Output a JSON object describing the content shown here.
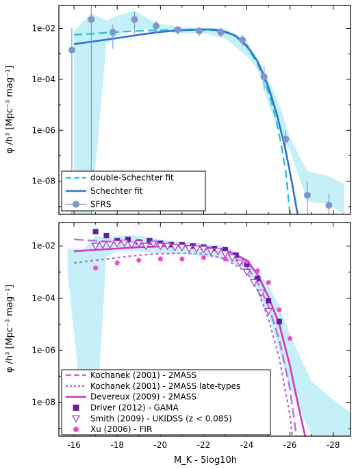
{
  "chart_data": {
    "type": "line",
    "xlabel": "M_K - 5log10h",
    "ylabel": "φ /h³ [Mpc⁻³ mag⁻¹]",
    "xlim": [
      -15.3,
      -28.8
    ],
    "ylim_log10": [
      -9.3,
      -1.1
    ],
    "xticks": [
      -16,
      -18,
      -20,
      -22,
      -24,
      -26,
      -28
    ],
    "yticks_log10": [
      -2,
      -4,
      -6,
      -8
    ],
    "ytick_labels": [
      "1e-02",
      "1e-04",
      "1e-06",
      "1e-08"
    ],
    "colors": {
      "band": "#c5f0f7",
      "sfrs_points": "#7f96cd",
      "double_schechter": "#33c0d4",
      "schechter": "#2374d6",
      "kochanek": "#b96fdb",
      "devereux": "#d533c7",
      "driver": "#6a1aa8",
      "smith": "#b239c8",
      "xu": "#f048c8"
    },
    "panels": [
      {
        "name": "top",
        "legend_position": "bottom-left",
        "band": {
          "x": [
            -16,
            -16.8,
            -17.5,
            -18,
            -18.8,
            -19.8,
            -21,
            -22,
            -23,
            -24,
            -24.5,
            -25,
            -25.6,
            -26,
            -26.8,
            -27.8,
            -28.5
          ],
          "upper": [
            -2.1,
            -1.4,
            -1.7,
            -1.5,
            -1.3,
            -1.8,
            -1.95,
            -1.97,
            -2.0,
            -2.5,
            -3.2,
            -4.0,
            -5.2,
            -6.3,
            -7.6,
            -7.8,
            -8.1
          ],
          "lower": [
            -9.3,
            -9.3,
            -2.6,
            -2.3,
            -2.0,
            -2.1,
            -2.2,
            -2.2,
            -2.4,
            -3.1,
            -3.6,
            -5.0,
            -6.2,
            -6.8,
            -8.8,
            -8.9,
            -9.3
          ]
        },
        "series": [
          {
            "name": "double-Schechter fit",
            "style": "dashed",
            "x": [
              -16,
              -17,
              -18,
              -19,
              -20,
              -21,
              -22,
              -22.5,
              -23,
              -23.5,
              -24,
              -24.5,
              -25,
              -25.3,
              -25.6,
              -25.8,
              -26
            ],
            "y": [
              -2.25,
              -2.2,
              -2.14,
              -2.1,
              -2.07,
              -2.05,
              -2.06,
              -2.07,
              -2.15,
              -2.32,
              -2.72,
              -3.38,
              -4.5,
              -5.4,
              -6.6,
              -7.6,
              -9.3
            ]
          },
          {
            "name": "Schechter fit",
            "style": "solid",
            "x": [
              -16,
              -17,
              -18,
              -19,
              -20,
              -21,
              -22,
              -22.5,
              -23,
              -23.5,
              -24,
              -24.5,
              -25,
              -25.4,
              -25.8,
              -26.1,
              -26.35
            ],
            "y": [
              -2.62,
              -2.5,
              -2.38,
              -2.25,
              -2.14,
              -2.07,
              -2.04,
              -2.05,
              -2.13,
              -2.3,
              -2.68,
              -3.3,
              -4.3,
              -5.4,
              -6.8,
              -8.1,
              -9.3
            ]
          },
          {
            "name": "SFRS",
            "style": "points",
            "x": [
              -15.9,
              -16.8,
              -17.8,
              -18.8,
              -19.8,
              -20.8,
              -21.8,
              -22.8,
              -23.8,
              -24.8,
              -25.8,
              -26.8,
              -27.8
            ],
            "y": [
              -2.85,
              -1.65,
              -2.15,
              -1.65,
              -1.9,
              -2.05,
              -2.1,
              -2.15,
              -2.45,
              -3.9,
              -6.35,
              -8.55,
              -8.95
            ],
            "err_low": [
              -9.3,
              -9.3,
              -2.8,
              -2.2,
              -2.2,
              -2.25,
              -2.3,
              -2.35,
              -2.7,
              -4.4,
              -6.7,
              -9.3,
              -9.3
            ],
            "err_high": [
              -2.0,
              -1.1,
              -1.85,
              -1.35,
              -1.7,
              -1.92,
              -1.95,
              -1.98,
              -2.25,
              -3.5,
              -6.0,
              -8.0,
              -8.5
            ]
          }
        ]
      },
      {
        "name": "bottom",
        "legend_position": "bottom-left",
        "band": {
          "x": [
            -15.7,
            -16.5,
            -17,
            -17.5,
            -18,
            -19,
            -20,
            -21,
            -22,
            -23,
            -24,
            -25,
            -25.5,
            -26,
            -27,
            -28,
            -28.8
          ],
          "upper": [
            -2.1,
            -2.1,
            -1.6,
            -1.7,
            -1.6,
            -1.6,
            -1.75,
            -1.85,
            -1.9,
            -2.0,
            -2.5,
            -3.5,
            -4.3,
            -5.4,
            -7.2,
            -7.9,
            -8.4
          ],
          "lower": [
            -3.0,
            -9.3,
            -9.3,
            -2.4,
            -2.2,
            -2.2,
            -2.3,
            -2.3,
            -2.4,
            -2.5,
            -3.0,
            -4.6,
            -6.0,
            -7.4,
            -9.3,
            -9.3,
            -9.3
          ]
        },
        "series": [
          {
            "name": "Kochanek (2001) - 2MASS",
            "style": "long-dashed",
            "x": [
              -16,
              -17,
              -18,
              -19,
              -20,
              -21,
              -22,
              -23,
              -24,
              -24.5,
              -25,
              -25.5,
              -26,
              -26.3
            ],
            "y": [
              -1.75,
              -1.8,
              -1.85,
              -1.9,
              -1.95,
              -2.0,
              -2.05,
              -2.2,
              -2.8,
              -3.4,
              -4.3,
              -5.6,
              -7.5,
              -9.3
            ]
          },
          {
            "name": "Kochanek (2001) - 2MASS late-types",
            "style": "dotted",
            "x": [
              -16,
              -17,
              -18,
              -19,
              -20,
              -21,
              -22,
              -23,
              -24,
              -24.5,
              -25,
              -25.5,
              -26,
              -26.1
            ],
            "y": [
              -2.65,
              -2.55,
              -2.45,
              -2.35,
              -2.3,
              -2.28,
              -2.3,
              -2.5,
              -3.0,
              -3.7,
              -4.8,
              -6.3,
              -8.5,
              -9.3
            ]
          },
          {
            "name": "Devereux (2009) - 2MASS",
            "style": "solid",
            "x": [
              -16,
              -17,
              -18,
              -19,
              -20,
              -21,
              -22,
              -23,
              -24,
              -24.5,
              -25,
              -25.5,
              -26,
              -26.4,
              -26.7
            ],
            "y": [
              -2.2,
              -2.15,
              -2.1,
              -2.05,
              -2.02,
              -2.0,
              -2.03,
              -2.15,
              -2.55,
              -3.1,
              -3.95,
              -5.0,
              -6.6,
              -8.2,
              -9.3
            ]
          },
          {
            "name": "Driver (2012) - GAMA",
            "style": "squares",
            "x": [
              -17,
              -17.5,
              -18,
              -18.5,
              -19,
              -19.5,
              -20,
              -20.5,
              -21,
              -21.5,
              -22,
              -22.5,
              -23,
              -23.5,
              -24,
              -24.5,
              -25,
              -25.5
            ],
            "y": [
              -1.45,
              -1.6,
              -1.8,
              -1.75,
              -1.85,
              -1.8,
              -1.9,
              -1.95,
              -1.95,
              -2.0,
              -2.05,
              -2.1,
              -2.15,
              -2.35,
              -2.7,
              -3.25,
              -4.1,
              -4.9
            ]
          },
          {
            "name": "Smith (2009) - UKIDSS (z < 0.085)",
            "style": "triangles",
            "x": [
              -17,
              -17.33,
              -17.67,
              -18,
              -18.33,
              -18.67,
              -19,
              -19.33,
              -19.67,
              -20,
              -20.33,
              -20.67,
              -21,
              -21.33,
              -21.67,
              -22,
              -22.33,
              -22.67,
              -23,
              -23.33,
              -23.67,
              -24,
              -24.33,
              -24.67,
              -25
            ],
            "y": [
              -2.0,
              -1.95,
              -1.95,
              -1.9,
              -1.88,
              -1.95,
              -1.9,
              -2.0,
              -1.92,
              -2.0,
              -2.0,
              -2.05,
              -2.05,
              -2.1,
              -2.1,
              -2.12,
              -2.2,
              -2.2,
              -2.3,
              -2.45,
              -2.65,
              -3.0,
              -3.4,
              -3.8,
              -4.5
            ]
          },
          {
            "name": "Xu (2006) - FIR",
            "style": "pentagons",
            "x": [
              -17,
              -18,
              -19,
              -20,
              -21,
              -22,
              -23,
              -24,
              -24.5,
              -25,
              -25.5,
              -26
            ],
            "y": [
              -2.85,
              -2.65,
              -2.55,
              -2.5,
              -2.5,
              -2.45,
              -2.5,
              -2.6,
              -2.95,
              -3.4,
              -4.45,
              -5.55
            ]
          }
        ]
      }
    ]
  }
}
